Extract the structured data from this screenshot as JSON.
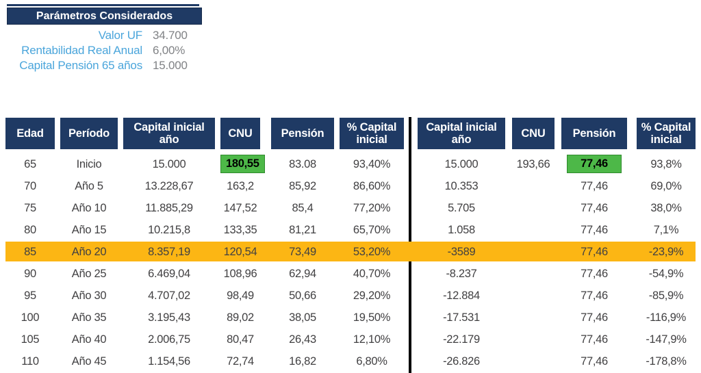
{
  "colors": {
    "navy": "#1F3A64",
    "light_blue": "#4AA5DB",
    "gray": "#808285",
    "text": "#414042",
    "green": "#4DB848",
    "orange": "#FCB614",
    "divider": "#000000"
  },
  "panel": {
    "title": "Parámetros Considerados",
    "params": [
      {
        "label": "Valor UF",
        "value": "34.700"
      },
      {
        "label": "Rentabilidad Real Anual",
        "value": "6,00%"
      },
      {
        "label": "Capital Pensión 65 años",
        "value": "15.000"
      }
    ]
  },
  "table": {
    "headers_left": [
      "Edad",
      "Período",
      "Capital inicial año",
      "CNU",
      "Pensión",
      "% Capital inicial"
    ],
    "headers_right": [
      "Capital inicial año",
      "CNU",
      "Pensión",
      "% Capital inicial"
    ],
    "rows": [
      {
        "edad": "65",
        "periodo": "Inicio",
        "capital_l": "15.000",
        "cnu_l": "180,55",
        "pension_l": "83.08",
        "pcap_l": "93,40%",
        "capital_r": "15.000",
        "cnu_r": "193,66",
        "pension_r": "77,46",
        "pcap_r": "93,8%",
        "highlight": false,
        "cnu_l_green": true,
        "pension_r_green": true
      },
      {
        "edad": "70",
        "periodo": "Año 5",
        "capital_l": "13.228,67",
        "cnu_l": "163,2",
        "pension_l": "85,92",
        "pcap_l": "86,60%",
        "capital_r": "10.353",
        "cnu_r": "",
        "pension_r": "77,46",
        "pcap_r": "69,0%",
        "highlight": false,
        "cnu_l_green": false,
        "pension_r_green": false
      },
      {
        "edad": "75",
        "periodo": "Año 10",
        "capital_l": "11.885,29",
        "cnu_l": "147,52",
        "pension_l": "85,4",
        "pcap_l": "77,20%",
        "capital_r": "5.705",
        "cnu_r": "",
        "pension_r": "77,46",
        "pcap_r": "38,0%",
        "highlight": false,
        "cnu_l_green": false,
        "pension_r_green": false
      },
      {
        "edad": "80",
        "periodo": "Año 15",
        "capital_l": "10.215,8",
        "cnu_l": "133,35",
        "pension_l": "81,21",
        "pcap_l": "65,70%",
        "capital_r": "1.058",
        "cnu_r": "",
        "pension_r": "77,46",
        "pcap_r": "7,1%",
        "highlight": false,
        "cnu_l_green": false,
        "pension_r_green": false
      },
      {
        "edad": "85",
        "periodo": "Año 20",
        "capital_l": "8.357,19",
        "cnu_l": "120,54",
        "pension_l": "73,49",
        "pcap_l": "53,20%",
        "capital_r": "-3589",
        "cnu_r": "",
        "pension_r": "77,46",
        "pcap_r": "-23,9%",
        "highlight": true,
        "cnu_l_green": false,
        "pension_r_green": false
      },
      {
        "edad": "90",
        "periodo": "Año 25",
        "capital_l": "6.469,04",
        "cnu_l": "108,96",
        "pension_l": "62,94",
        "pcap_l": "40,70%",
        "capital_r": "-8.237",
        "cnu_r": "",
        "pension_r": "77,46",
        "pcap_r": "-54,9%",
        "highlight": false,
        "cnu_l_green": false,
        "pension_r_green": false
      },
      {
        "edad": "95",
        "periodo": "Año 30",
        "capital_l": "4.707,02",
        "cnu_l": "98,49",
        "pension_l": "50,66",
        "pcap_l": "29,20%",
        "capital_r": "-12.884",
        "cnu_r": "",
        "pension_r": "77,46",
        "pcap_r": "-85,9%",
        "highlight": false,
        "cnu_l_green": false,
        "pension_r_green": false
      },
      {
        "edad": "100",
        "periodo": "Año 35",
        "capital_l": "3.195,43",
        "cnu_l": "89,02",
        "pension_l": "38,05",
        "pcap_l": "19,50%",
        "capital_r": "-17.531",
        "cnu_r": "",
        "pension_r": "77,46",
        "pcap_r": "-116,9%",
        "highlight": false,
        "cnu_l_green": false,
        "pension_r_green": false
      },
      {
        "edad": "105",
        "periodo": "Año 40",
        "capital_l": "2.006,75",
        "cnu_l": "80,47",
        "pension_l": "26,43",
        "pcap_l": "12,10%",
        "capital_r": "-22.179",
        "cnu_r": "",
        "pension_r": "77,46",
        "pcap_r": "-147,9%",
        "highlight": false,
        "cnu_l_green": false,
        "pension_r_green": false
      },
      {
        "edad": "110",
        "periodo": "Año 45",
        "capital_l": "1.154,56",
        "cnu_l": "72,74",
        "pension_l": "16,82",
        "pcap_l": "6,80%",
        "capital_r": "-26.826",
        "cnu_r": "",
        "pension_r": "77,46",
        "pcap_r": "-178,8%",
        "highlight": false,
        "cnu_l_green": false,
        "pension_r_green": false
      }
    ]
  }
}
